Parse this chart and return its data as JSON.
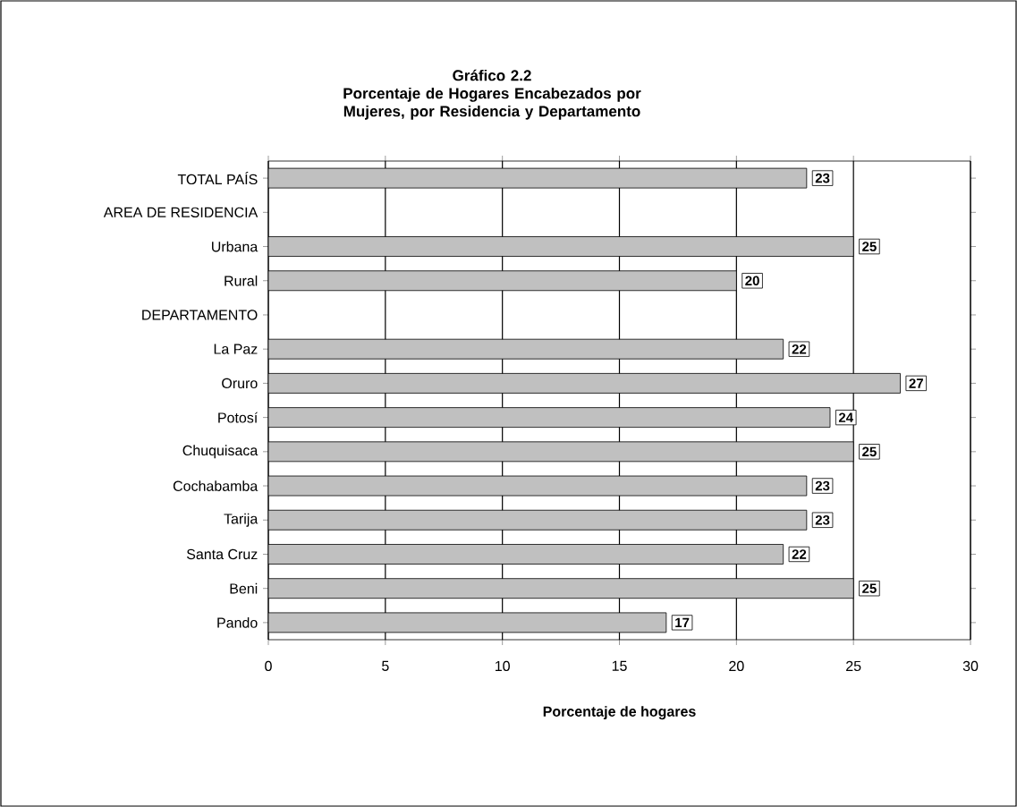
{
  "chart_data": {
    "type": "bar",
    "orientation": "horizontal",
    "title": "Gráfico 2.2",
    "subtitle": "Porcentaje de Hogares Encabezados por Mujeres, por Residencia y Departamento",
    "xlabel": "Porcentaje de hogares",
    "categories": [
      "TOTAL PAÍS",
      "AREA DE RESIDENCIA",
      "Urbana",
      "Rural",
      "DEPARTAMENTO",
      "La Paz",
      "Oruro",
      "Potosí",
      "Chuquisaca",
      "Cochabamba",
      "Tarija",
      "Santa Cruz",
      "Beni",
      "Pando"
    ],
    "values": [
      23,
      null,
      25,
      20,
      null,
      22,
      27,
      24,
      25,
      23,
      23,
      22,
      25,
      17
    ],
    "color": "#c0c0c0",
    "xlim": [
      0,
      30
    ],
    "xticks": [
      0,
      5,
      10,
      15,
      20,
      25,
      30
    ],
    "grid": "x",
    "data_labels": true
  }
}
